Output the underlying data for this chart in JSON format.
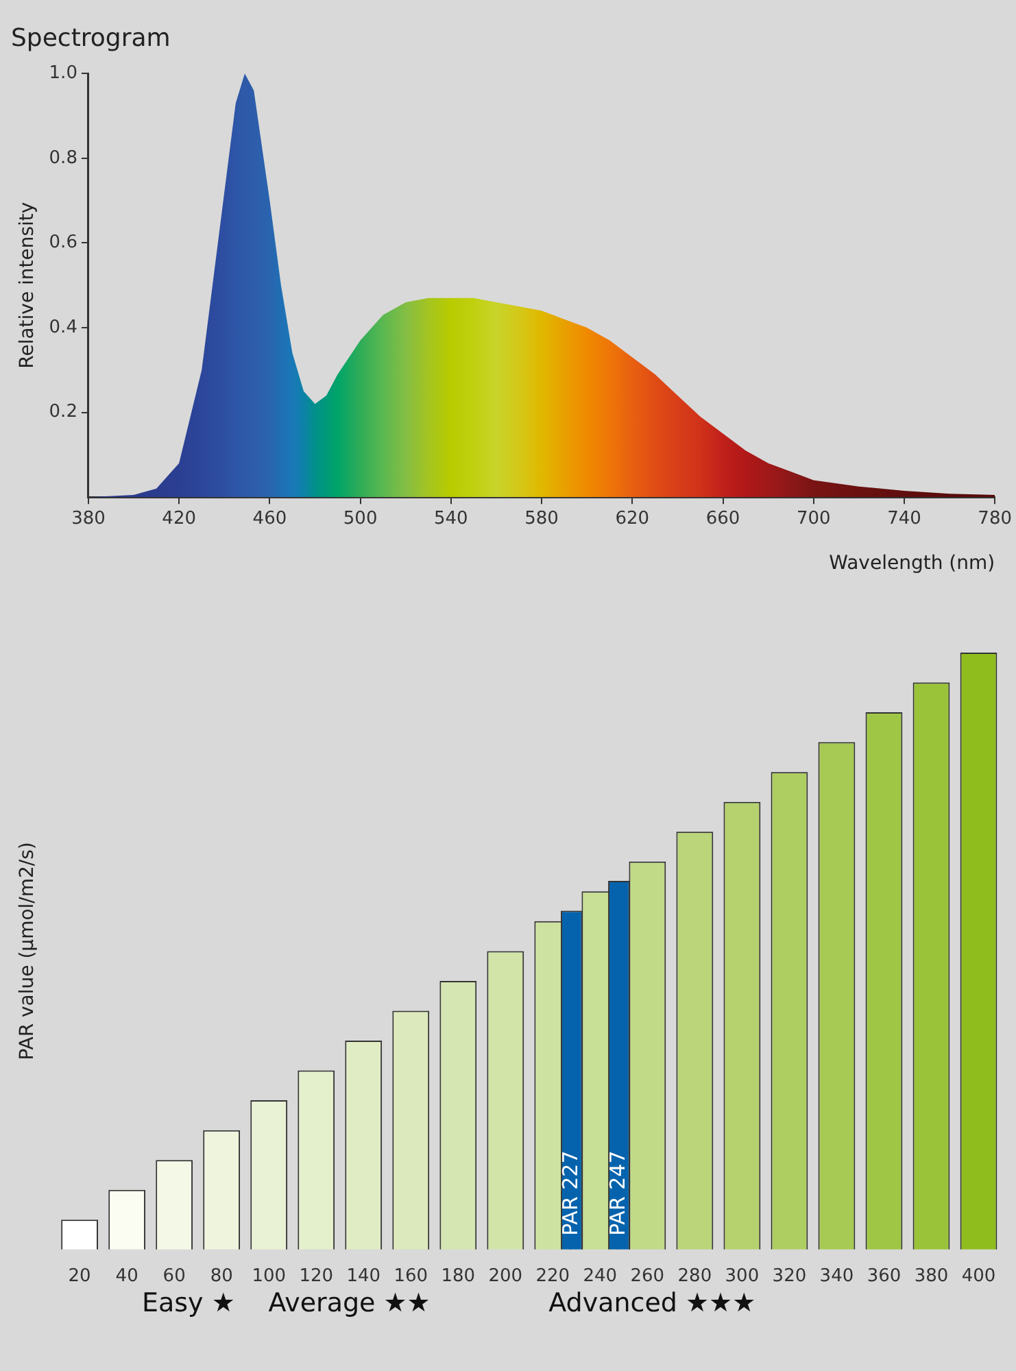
{
  "chart_data": [
    {
      "type": "area",
      "title": "Spectrogram",
      "xlabel": "Wavelength (nm)",
      "ylabel": "Relative intensity",
      "xlim": [
        380,
        780
      ],
      "ylim": [
        0,
        1
      ],
      "xticks": [
        380,
        420,
        460,
        500,
        540,
        580,
        620,
        660,
        700,
        740,
        780
      ],
      "yticks": [
        {
          "value": 0.2,
          "label": "0.2"
        },
        {
          "value": 0.4,
          "label": "0.4"
        },
        {
          "value": 0.6,
          "label": "0.6"
        },
        {
          "value": 0.8,
          "label": "0.8"
        },
        {
          "value": 1,
          "label": "1.0"
        }
      ],
      "legend": false,
      "grid": false,
      "series": [
        {
          "x": [
            380,
            400,
            410,
            420,
            430,
            440,
            445,
            449,
            453,
            460,
            465,
            470,
            475,
            480,
            485,
            490,
            500,
            510,
            520,
            530,
            540,
            550,
            560,
            570,
            580,
            590,
            600,
            610,
            620,
            630,
            640,
            650,
            660,
            670,
            680,
            690,
            700,
            720,
            740,
            760,
            780
          ],
          "values": [
            0,
            0.005,
            0.02,
            0.08,
            0.3,
            0.72,
            0.93,
            1,
            0.96,
            0.7,
            0.5,
            0.34,
            0.25,
            0.22,
            0.24,
            0.29,
            0.37,
            0.43,
            0.46,
            0.47,
            0.47,
            0.47,
            0.46,
            0.45,
            0.44,
            0.42,
            0.4,
            0.37,
            0.33,
            0.29,
            0.24,
            0.19,
            0.15,
            0.11,
            0.08,
            0.06,
            0.04,
            0.025,
            0.015,
            0.008,
            0.005
          ],
          "colors": [
            "#2b3a8c",
            "#2b3a8c",
            "#2b3c8e",
            "#2b3f92",
            "#2c469a",
            "#2d4fa2",
            "#2e56a8",
            "#2e5aa8",
            "#2d5caa",
            "#2a64ae",
            "#1f6fb4",
            "#1a78b8",
            "#0d82a8",
            "#00908a",
            "#009a78",
            "#00a468",
            "#30ac58",
            "#5ab850",
            "#84be44",
            "#a4c420",
            "#b8cc00",
            "#c0d010",
            "#c8d42a",
            "#d4c818",
            "#e0b800",
            "#e8a000",
            "#f08a00",
            "#ee7608",
            "#e86010",
            "#e04c14",
            "#d83e18",
            "#d0321a",
            "#c0201a",
            "#b01818",
            "#a01818",
            "#8c1818",
            "#7a1414",
            "#6a1010",
            "#600e0e",
            "#5a0c0c",
            "#560b0b"
          ]
        }
      ]
    },
    {
      "type": "bar",
      "ylabel": "PAR value (µmol/m2/s)",
      "tick_labels": "x",
      "legend": false,
      "grid": false,
      "categories": [
        "20",
        "40",
        "60",
        "80",
        "100",
        "120",
        "140",
        "160",
        "180",
        "200",
        "220",
        "240",
        "260",
        "280",
        "300",
        "320",
        "340",
        "360",
        "380",
        "400"
      ],
      "series": [
        {
          "values": [
            20,
            40,
            60,
            80,
            100,
            120,
            140,
            160,
            180,
            200,
            220,
            240,
            260,
            280,
            300,
            320,
            340,
            360,
            380,
            400
          ],
          "colors": [
            "#ffffff",
            "#fbfcf2",
            "#f4f8e6",
            "#eff5dc",
            "#eaf2d6",
            "#e4efcc",
            "#e0ecc4",
            "#dce9bc",
            "#d6e6b2",
            "#d2e4a8",
            "#cde2a0",
            "#c8df96",
            "#c1da88",
            "#bad57a",
            "#b5d26e",
            "#aece62",
            "#a7ca54",
            "#a0c646",
            "#9ac33a",
            "#8fbd1e"
          ]
        },
        {
          "color": "#0563ad",
          "values": [
            null,
            null,
            null,
            null,
            null,
            null,
            null,
            null,
            null,
            null,
            227,
            247,
            null,
            null,
            null,
            null,
            null,
            null,
            null,
            null
          ],
          "value_labels": [
            null,
            null,
            null,
            null,
            null,
            null,
            null,
            null,
            null,
            null,
            "PAR 227",
            "PAR 247",
            null,
            null,
            null,
            null,
            null,
            null,
            null,
            null
          ]
        }
      ],
      "annotations": [
        "Easy ★",
        "Average ★★",
        "Advanced ★★★"
      ]
    }
  ]
}
